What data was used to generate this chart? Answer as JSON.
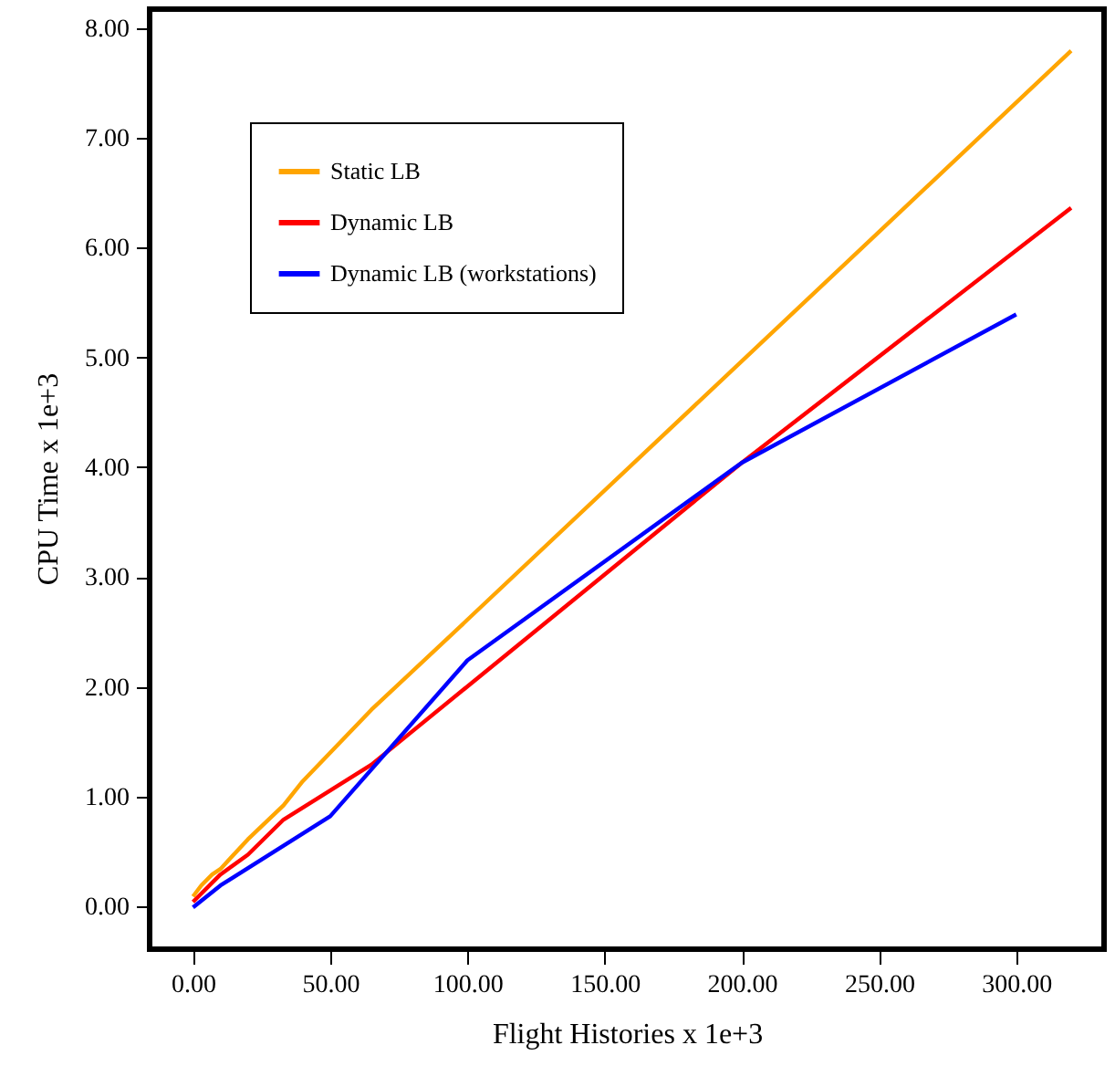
{
  "chart_data": {
    "type": "line",
    "xlabel": "Flight Histories x 1e+3",
    "ylabel": "CPU Time x 1e+3",
    "xlim": [
      -15.8,
      332
    ],
    "ylim": [
      -0.38,
      8.18
    ],
    "xticks": [
      {
        "value": 0,
        "label": "0.00"
      },
      {
        "value": 50,
        "label": "50.00"
      },
      {
        "value": 100,
        "label": "100.00"
      },
      {
        "value": 150,
        "label": "150.00"
      },
      {
        "value": 200,
        "label": "200.00"
      },
      {
        "value": 250,
        "label": "250.00"
      },
      {
        "value": 300,
        "label": "300.00"
      }
    ],
    "yticks": [
      {
        "value": 0,
        "label": "0.00"
      },
      {
        "value": 1,
        "label": "1.00"
      },
      {
        "value": 2,
        "label": "2.00"
      },
      {
        "value": 3,
        "label": "3.00"
      },
      {
        "value": 4,
        "label": "4.00"
      },
      {
        "value": 5,
        "label": "5.00"
      },
      {
        "value": 6,
        "label": "6.00"
      },
      {
        "value": 7,
        "label": "7.00"
      },
      {
        "value": 8,
        "label": "8.00"
      }
    ],
    "grid": false,
    "legend": "top left",
    "marker": "none",
    "series": [
      {
        "name": "Static LB",
        "color": "#ffa500",
        "x": [
          0,
          3,
          7,
          10,
          20,
          33,
          40,
          65,
          100,
          320
        ],
        "values": [
          0.1,
          0.2,
          0.3,
          0.35,
          0.62,
          0.93,
          1.15,
          1.8,
          2.62,
          7.8
        ]
      },
      {
        "name": "Dynamic LB",
        "color": "#ff0000",
        "x": [
          0,
          2,
          10,
          20,
          33,
          65,
          200,
          320
        ],
        "values": [
          0.05,
          0.1,
          0.3,
          0.48,
          0.8,
          1.3,
          4.05,
          6.37
        ]
      },
      {
        "name": "Dynamic LB (workstations)",
        "color": "#0000ff",
        "x": [
          0,
          10,
          50,
          100,
          200,
          300
        ],
        "values": [
          0,
          0.2,
          0.83,
          2.25,
          4.05,
          5.4
        ]
      }
    ]
  }
}
